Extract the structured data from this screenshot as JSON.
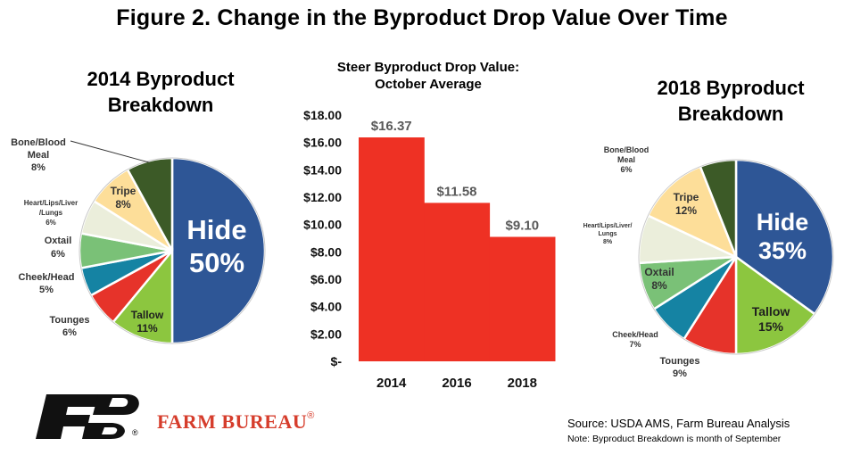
{
  "figure_title": "Figure 2. Change in the Byproduct Drop Value Over Time",
  "colors": {
    "Hide": "#2e5696",
    "Tallow": "#8cc63f",
    "Tounges": "#e6332a",
    "Cheek/Head": "#1583a3",
    "Oxtail": "#7ac177",
    "Heart/Lips/Liver/Lungs": "#ebeedb",
    "Tripe": "#fdde99",
    "Bone/Blood Meal": "#3c5a27",
    "bar": "#ee3124",
    "brand_red": "#d63d2c"
  },
  "chart_data": [
    {
      "type": "pie",
      "title": "2014 Byproduct Breakdown",
      "title_lines": [
        "2014 Byproduct",
        "Breakdown"
      ],
      "slices": [
        {
          "label": "Hide",
          "value": 50,
          "text": "50%"
        },
        {
          "label": "Tallow",
          "value": 11,
          "text": "11%"
        },
        {
          "label": "Tounges",
          "value": 6,
          "text": "6%"
        },
        {
          "label": "Cheek/Head",
          "value": 5,
          "text": "5%"
        },
        {
          "label": "Oxtail",
          "value": 6,
          "text": "6%"
        },
        {
          "label": "Heart/Lips/Liver/Lungs",
          "value": 6,
          "text": "6%"
        },
        {
          "label": "Tripe",
          "value": 8,
          "text": "8%"
        },
        {
          "label": "Bone/Blood Meal",
          "value": 8,
          "text": "8%"
        }
      ]
    },
    {
      "type": "bar",
      "title": "Steer Byproduct Drop Value: October Average",
      "title_lines": [
        "Steer Byproduct Drop Value:",
        "October Average"
      ],
      "categories": [
        "2014",
        "2016",
        "2018"
      ],
      "values": [
        16.37,
        11.58,
        9.1
      ],
      "value_labels": [
        "$16.37",
        "$11.58",
        "$9.10"
      ],
      "ylim": [
        0,
        18
      ],
      "yticks": [
        0,
        2,
        4,
        6,
        8,
        10,
        12,
        14,
        16,
        18
      ],
      "ytick_labels": [
        "$-",
        "$2.00",
        "$4.00",
        "$6.00",
        "$8.00",
        "$10.00",
        "$12.00",
        "$14.00",
        "$16.00",
        "$18.00"
      ],
      "grid": false
    },
    {
      "type": "pie",
      "title": "2018 Byproduct Breakdown",
      "title_lines": [
        "2018 Byproduct",
        "Breakdown"
      ],
      "slices": [
        {
          "label": "Hide",
          "value": 35,
          "text": "35%"
        },
        {
          "label": "Tallow",
          "value": 15,
          "text": "15%"
        },
        {
          "label": "Tounges",
          "value": 9,
          "text": "9%"
        },
        {
          "label": "Cheek/Head",
          "value": 7,
          "text": "7%"
        },
        {
          "label": "Oxtail",
          "value": 8,
          "text": "8%"
        },
        {
          "label": "Heart/Lips/Liver/Lungs",
          "value": 8,
          "text": "8%"
        },
        {
          "label": "Tripe",
          "value": 12,
          "text": "12%"
        },
        {
          "label": "Bone/Blood Meal",
          "value": 6,
          "text": "6%"
        }
      ]
    }
  ],
  "pie_label_text": {
    "Hide": [
      "Hide"
    ],
    "Tallow": [
      "Tallow"
    ],
    "Tounges": [
      "Tounges"
    ],
    "Cheek/Head": [
      "Cheek/Head"
    ],
    "Oxtail": [
      "Oxtail"
    ],
    "Heart/Lips/Liver/Lungs": [
      "Heart/Lips/Liver",
      "/Lungs"
    ],
    "Tripe": [
      "Tripe"
    ],
    "Bone/Blood Meal": [
      "Bone/Blood",
      "Meal"
    ]
  },
  "pie_label_text_2018": {
    "Heart/Lips/Liver/Lungs": [
      "Heart/Lips/Liver/",
      "Lungs"
    ],
    "Bone/Blood Meal": [
      "Bone/Blood",
      "Meal"
    ]
  },
  "brand": {
    "name": "FARM BUREAU",
    "registered": "®"
  },
  "source": "Source: USDA AMS, Farm Bureau Analysis",
  "note": "Note: Byproduct Breakdown is month of September"
}
